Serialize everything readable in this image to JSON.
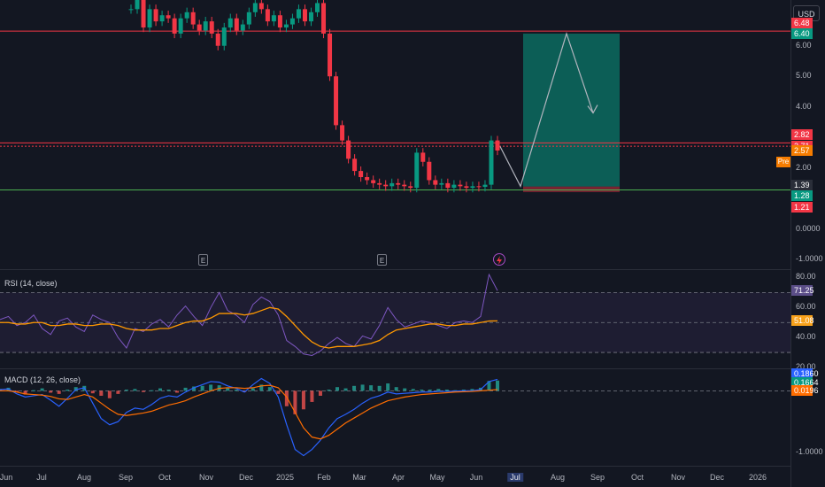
{
  "currency_button": "USD",
  "price_axis": {
    "ticks": [
      "6.00",
      "5.00",
      "4.00",
      "3.00",
      "2.00",
      "0.0000",
      "-1.0000"
    ],
    "badges": [
      {
        "text": "6.48",
        "color": "#f23645"
      },
      {
        "text": "6.40",
        "color": "#089981"
      },
      {
        "text": "2.82",
        "color": "#f23645"
      },
      {
        "text": "2.71",
        "color": "#f23645"
      },
      {
        "text": "2.57",
        "color": "#f57c00"
      },
      {
        "text": "1.39",
        "color": "#2a2e39"
      },
      {
        "text": "1.28",
        "color": "#089981"
      },
      {
        "text": "1.21",
        "color": "#f23645"
      }
    ],
    "pre_label": "Pre"
  },
  "rsi_axis": {
    "ticks": [
      "80.00",
      "60.00",
      "40.00",
      "20.00"
    ],
    "badges": [
      {
        "text": "71.25",
        "color": "#5b4e88"
      },
      {
        "text": "51.08",
        "color": "#f7a21b"
      }
    ]
  },
  "macd_axis": {
    "ticks": [
      "-1.0000"
    ],
    "badges": [
      {
        "text": "0.1860",
        "color": "#2962ff"
      },
      {
        "text": "0.1664",
        "color": "#089981"
      },
      {
        "text": "0.0196",
        "color": "#ff6d00"
      }
    ]
  },
  "events": [
    "E",
    "E"
  ],
  "x_axis": [
    "Jun",
    "Jul",
    "Aug",
    "Sep",
    "Oct",
    "Nov",
    "Dec",
    "2025",
    "Feb",
    "Mar",
    "Apr",
    "May",
    "Jun",
    "Jul",
    "Aug",
    "Sep",
    "Oct",
    "Nov",
    "Dec",
    "2026"
  ],
  "rsi_title": "RSI (14, close)",
  "macd_title": "MACD (12, 26, close)",
  "chart_data": [
    {
      "type": "candlestick",
      "pane": "price",
      "ylim": [
        -1.2,
        7.5
      ],
      "horizontal_levels": [
        {
          "value": 6.48,
          "color": "#f23645"
        },
        {
          "value": 2.82,
          "color": "#f23645"
        },
        {
          "value": 2.71,
          "color": "#f23645"
        },
        {
          "value": 1.28,
          "color": "#4caf50"
        }
      ],
      "close_series": [
        7.2,
        7.5,
        6.6,
        7.2,
        6.8,
        7.0,
        6.9,
        6.4,
        6.9,
        7.1,
        6.7,
        6.5,
        6.8,
        6.4,
        6.0,
        6.6,
        6.9,
        6.5,
        6.7,
        7.1,
        7.4,
        7.2,
        6.8,
        7.0,
        6.6,
        6.7,
        6.9,
        7.2,
        6.8,
        7.1,
        7.4,
        6.4,
        5.0,
        3.4,
        2.9,
        2.3,
        1.9,
        1.7,
        1.6,
        1.5,
        1.45,
        1.4,
        1.5,
        1.45,
        1.4,
        1.35,
        2.5,
        2.2,
        1.6,
        1.45,
        1.5,
        1.35,
        1.45,
        1.4,
        1.35,
        1.4,
        1.38,
        1.45,
        2.9,
        2.57
      ],
      "forecast_path": [
        2.7,
        1.4,
        6.4,
        3.8
      ],
      "long_position": {
        "entry": 1.39,
        "target": 6.4,
        "stop": 1.21
      }
    },
    {
      "type": "line",
      "pane": "rsi",
      "ylim": [
        20,
        85
      ],
      "bands": [
        70,
        50,
        30
      ],
      "series": [
        {
          "color": "#7e57c2",
          "values": [
            52,
            54,
            48,
            50,
            55,
            46,
            42,
            51,
            53,
            47,
            44,
            55,
            52,
            50,
            40,
            33,
            46,
            44,
            49,
            52,
            47,
            55,
            61,
            54,
            48,
            60,
            70,
            58,
            55,
            50,
            62,
            67,
            64,
            55,
            38,
            34,
            29,
            28,
            31,
            36,
            40,
            36,
            34,
            41,
            39,
            48,
            60,
            52,
            47,
            49,
            51,
            50,
            48,
            46,
            50,
            51,
            50,
            54,
            82,
            71.25
          ]
        },
        {
          "color": "#ff9800",
          "values": [
            50,
            50,
            49,
            49,
            50,
            50,
            48,
            48,
            49,
            49,
            48,
            48,
            49,
            49,
            48,
            46,
            45,
            45,
            45,
            46,
            46,
            48,
            50,
            51,
            51,
            53,
            56,
            56,
            56,
            55,
            56,
            58,
            60,
            59,
            54,
            48,
            42,
            37,
            34,
            33,
            34,
            34,
            34,
            35,
            36,
            38,
            42,
            45,
            46,
            47,
            48,
            49,
            49,
            48,
            48,
            49,
            49,
            50,
            51,
            51.08
          ]
        }
      ]
    },
    {
      "type": "bar_line",
      "pane": "macd",
      "ylim": [
        -1.2,
        0.35
      ],
      "histogram": [
        0.03,
        0.05,
        -0.02,
        -0.06,
        0.01,
        0.04,
        -0.03,
        -0.05,
        0.02,
        0.06,
        0.08,
        -0.04,
        -0.08,
        -0.12,
        -0.05,
        0.02,
        0.03,
        -0.02,
        0.01,
        0.04,
        0.02,
        -0.03,
        0.05,
        0.07,
        0.08,
        0.1,
        0.09,
        0.05,
        0.02,
        -0.02,
        0.04,
        0.1,
        0.06,
        -0.05,
        -0.25,
        -0.38,
        -0.3,
        -0.18,
        -0.08,
        0.02,
        0.06,
        0.04,
        0.08,
        0.1,
        0.09,
        0.08,
        0.12,
        0.06,
        0.04,
        0.03,
        0.02,
        0.02,
        0.03,
        0.02,
        0.01,
        0.02,
        0.03,
        0.05,
        0.16,
        0.1664
      ],
      "series": [
        {
          "color": "#2962ff",
          "values": [
            0.02,
            0.03,
            -0.05,
            -0.1,
            -0.08,
            -0.06,
            -0.15,
            -0.25,
            -0.12,
            0.02,
            0.05,
            -0.2,
            -0.45,
            -0.55,
            -0.5,
            -0.35,
            -0.28,
            -0.3,
            -0.22,
            -0.12,
            -0.08,
            -0.1,
            -0.02,
            0.05,
            0.1,
            0.15,
            0.14,
            0.08,
            0.04,
            -0.02,
            0.1,
            0.2,
            0.12,
            -0.1,
            -0.55,
            -0.95,
            -1.05,
            -0.95,
            -0.8,
            -0.6,
            -0.45,
            -0.38,
            -0.3,
            -0.2,
            -0.12,
            -0.08,
            -0.02,
            -0.05,
            -0.04,
            -0.03,
            -0.02,
            -0.02,
            -0.01,
            -0.01,
            -0.005,
            0.0,
            0.0,
            0.02,
            0.15,
            0.186
          ]
        },
        {
          "color": "#ff6d00",
          "values": [
            0.0,
            0.0,
            -0.02,
            -0.05,
            -0.06,
            -0.07,
            -0.09,
            -0.13,
            -0.14,
            -0.1,
            -0.06,
            -0.1,
            -0.2,
            -0.3,
            -0.38,
            -0.4,
            -0.38,
            -0.36,
            -0.33,
            -0.28,
            -0.23,
            -0.2,
            -0.16,
            -0.1,
            -0.05,
            0.0,
            0.04,
            0.05,
            0.05,
            0.04,
            0.05,
            0.08,
            0.09,
            0.05,
            -0.1,
            -0.35,
            -0.6,
            -0.75,
            -0.78,
            -0.72,
            -0.62,
            -0.52,
            -0.44,
            -0.36,
            -0.28,
            -0.22,
            -0.16,
            -0.13,
            -0.1,
            -0.08,
            -0.06,
            -0.05,
            -0.04,
            -0.03,
            -0.02,
            -0.015,
            -0.01,
            0.0,
            0.01,
            0.0196
          ]
        }
      ]
    }
  ]
}
